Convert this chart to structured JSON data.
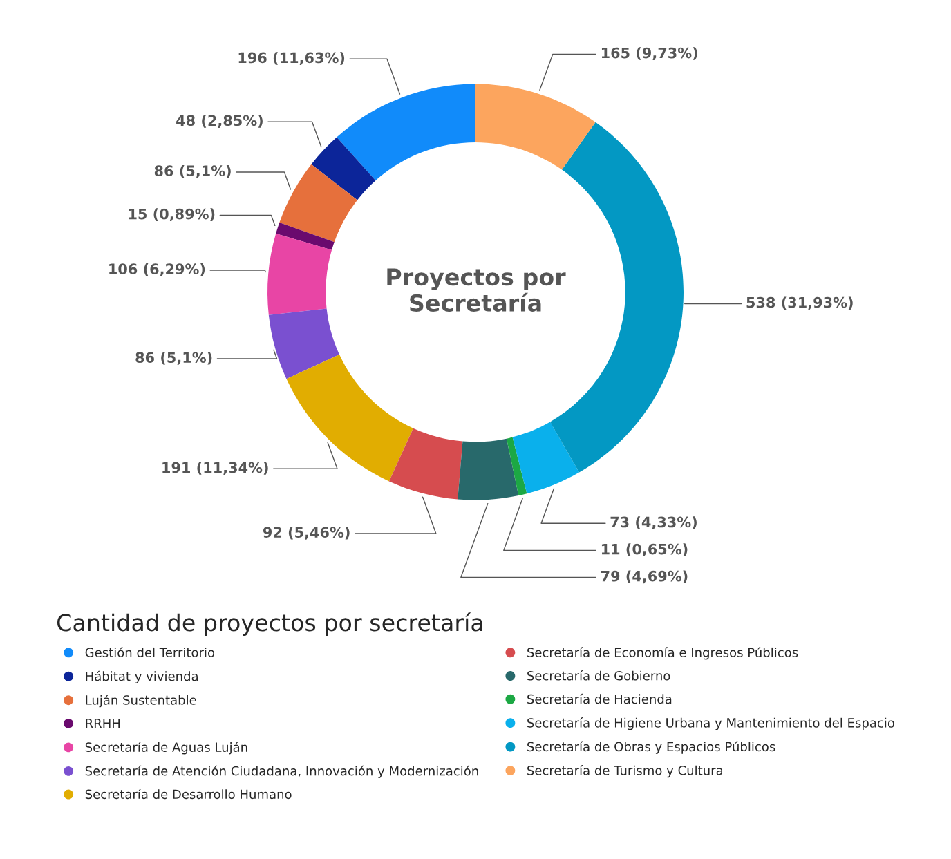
{
  "chart_data": {
    "type": "donut",
    "title": "Proyectos por\nSecretaría",
    "legend_title": "Cantidad de proyectos por secretaría",
    "legend": "bottom",
    "categories": [
      "Gestión del Territorio",
      "Hábitat y vivienda",
      "Luján Sustentable",
      "RRHH",
      "Secretaría de Aguas Luján",
      "Secretaría de Atención Ciudadana, Innovación y Modernización",
      "Secretaría de Desarrollo Humano",
      "Secretaría de Economía e Ingresos Públicos",
      "Secretaría de Gobierno",
      "Secretaría de Hacienda",
      "Secretaría de Higiene Urbana y Mantenimiento del Espacio",
      "Secretaría de Obras y Espacios Públicos",
      "Secretaría de Turismo y Cultura"
    ],
    "values": [
      196,
      48,
      86,
      15,
      106,
      86,
      191,
      92,
      79,
      11,
      73,
      538,
      165
    ],
    "value_labels": [
      "196 (11,63%)",
      "48 (2,85%)",
      "86 (5,1%)",
      "15 (0,89%)",
      "106 (6,29%)",
      "86 (5,1%)",
      "191 (11,34%)",
      "92 (5,46%)",
      "79 (4,69%)",
      "11 (0,65%)",
      "73 (4,33%)",
      "538 (31,93%)",
      "165 (9,73%)"
    ],
    "colors": [
      "#118bfa",
      "#0c2599",
      "#e6703c",
      "#6a0a6e",
      "#e845a5",
      "#7a50d0",
      "#e1ad01",
      "#d64c4f",
      "#28696b",
      "#1ca844",
      "#0ab0ec",
      "#0398c3",
      "#fca55e"
    ]
  }
}
